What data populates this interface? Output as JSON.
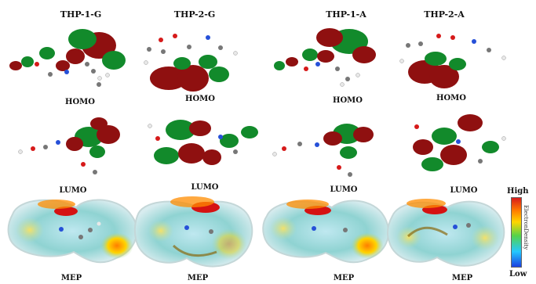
{
  "columns": [
    "THP-1-G",
    "THP-2-G",
    "THP-1-A",
    "THP-2-A"
  ],
  "row_labels": {
    "homo": "HOMO",
    "lumo": "LUMO",
    "mep": "MEP"
  },
  "legend": {
    "high": "High",
    "low": "Low",
    "side_label": "ElectronDensity"
  },
  "colors": {
    "orbital_positive": "#8f1010",
    "orbital_negative": "#128a2b",
    "atom_carbon": "#777777",
    "atom_hydrogen": "#e8e8e8",
    "atom_nitrogen": "#2650d8",
    "atom_oxygen": "#d61a1a",
    "mep_surface": "#8fd3d2"
  }
}
